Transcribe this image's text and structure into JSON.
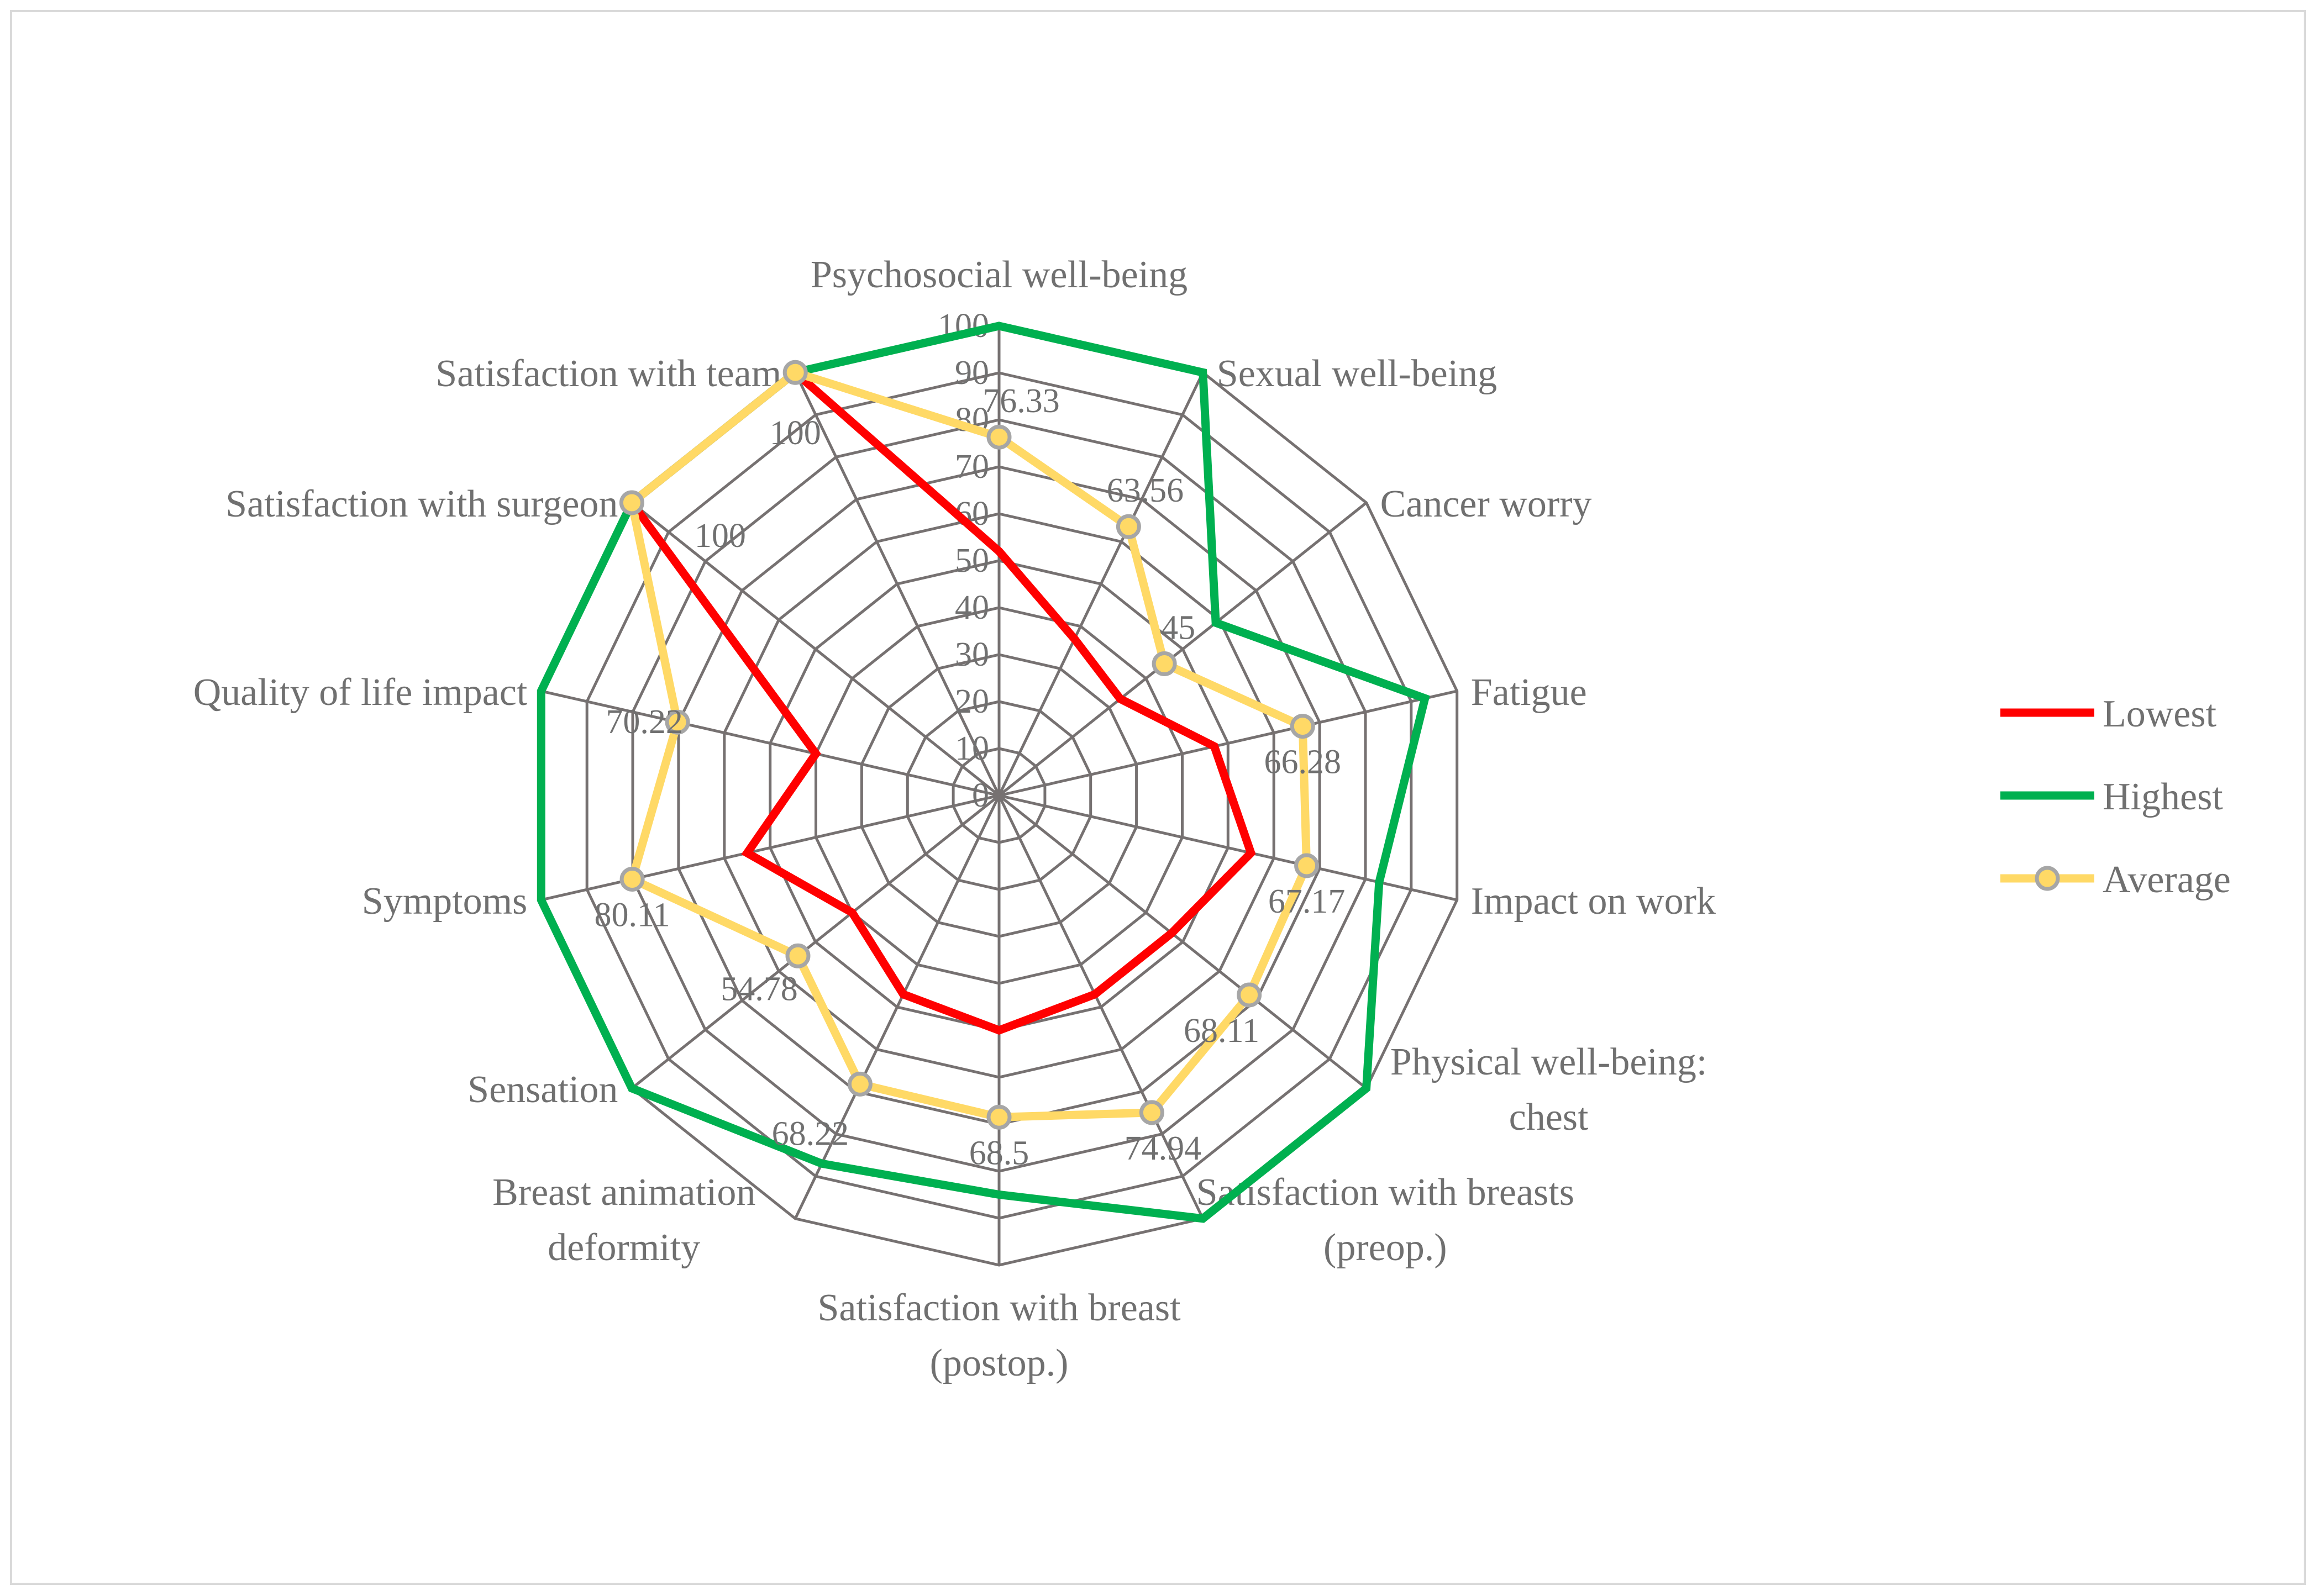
{
  "chart_data": {
    "type": "radar",
    "title": "",
    "categories": [
      [
        "Psychosocial well-being"
      ],
      [
        "Sexual well-being"
      ],
      [
        "Cancer worry"
      ],
      [
        "Fatigue"
      ],
      [
        "Impact on work"
      ],
      [
        "Physical well-being:",
        "chest"
      ],
      [
        "Satisfaction with breasts",
        "(preop.)"
      ],
      [
        "Satisfaction with breast",
        "(postop.)"
      ],
      [
        "Breast animation",
        "deformity"
      ],
      [
        "Sensation"
      ],
      [
        "Symptoms"
      ],
      [
        "Quality of life impact"
      ],
      [
        "Satisfaction with surgeon"
      ],
      [
        "Satisfaction with team"
      ]
    ],
    "rlim": [
      0,
      100
    ],
    "ticks": [
      0,
      10,
      20,
      30,
      40,
      50,
      60,
      70,
      80,
      90,
      100
    ],
    "tick_labels": [
      "0",
      "10",
      "20",
      "30",
      "40",
      "50",
      "60",
      "70",
      "80",
      "90",
      "100"
    ],
    "series": [
      {
        "name": "Lowest",
        "color": "#ff0000",
        "marker": false,
        "values": [
          52,
          37,
          33,
          47,
          55,
          47,
          47,
          50,
          47,
          40,
          55,
          40,
          100,
          100
        ]
      },
      {
        "name": "Highest",
        "color": "#00b050",
        "marker": false,
        "values": [
          100,
          100,
          59,
          93,
          83,
          100,
          100,
          85,
          87,
          100,
          100,
          100,
          100,
          100
        ]
      },
      {
        "name": "Average",
        "color": "#ffd966",
        "marker": true,
        "values": [
          76.33,
          63.56,
          45,
          66.28,
          67.17,
          68.11,
          74.94,
          68.5,
          68.22,
          54.78,
          80.11,
          70.22,
          100,
          100
        ]
      }
    ],
    "data_labels": [
      "76.33",
      "63.56",
      "45",
      "66.28",
      "67.17",
      "68.11",
      "74.94",
      "68.5",
      "68.22",
      "54.78",
      "80.11",
      "70.22",
      "100",
      "100"
    ],
    "legend": {
      "position": "right",
      "items": [
        "Lowest",
        "Highest",
        "Average"
      ]
    },
    "colors": {
      "grid": "#767171",
      "border": "#d9d9d9",
      "text": "#707070",
      "marker_fill": "#ffd966",
      "marker_stroke": "#a6a6a6"
    }
  }
}
